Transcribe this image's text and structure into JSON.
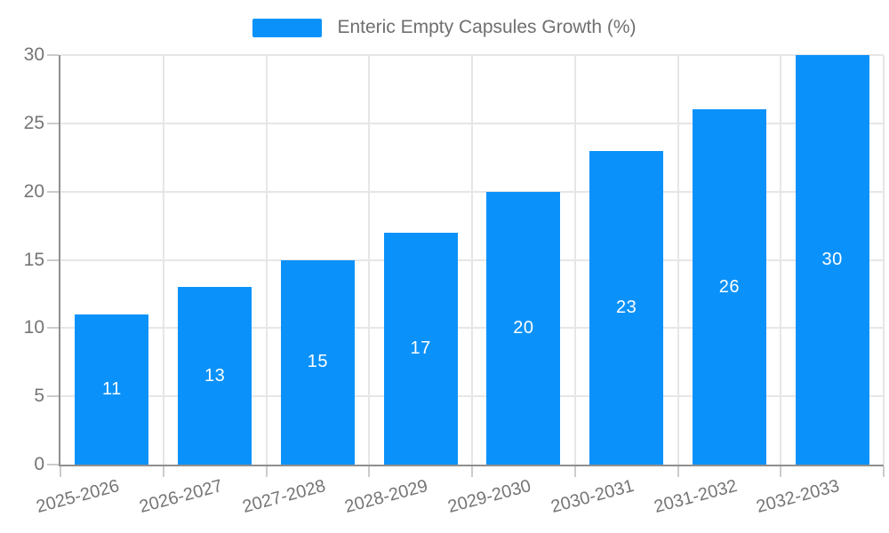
{
  "chart_data": {
    "type": "bar",
    "title": "",
    "categories": [
      "2025-2026",
      "2026-2027",
      "2027-2028",
      "2028-2029",
      "2029-2030",
      "2030-2031",
      "2031-2032",
      "2032-2033"
    ],
    "series": [
      {
        "name": "Enteric Empty Capsules Growth (%)",
        "values": [
          11,
          13,
          15,
          17,
          20,
          23,
          26,
          30
        ]
      }
    ],
    "legend": [
      "Enteric Empty Capsules Growth (%)"
    ],
    "legend_position": "top-center",
    "xlabel": "",
    "ylabel": "",
    "ylim": [
      0,
      30
    ],
    "yticks": [
      0,
      5,
      10,
      15,
      20,
      25,
      30
    ],
    "grid": true,
    "value_labels": "inside-center",
    "x_tick_label_rotation_deg": -15
  },
  "style": {
    "bar_color": "#0b92fa",
    "value_label_color": "#ffffff",
    "axis_text_color": "#757575",
    "legend_text_color": "#6f6f6f",
    "grid_color": "#e6e6e6",
    "axis_line_color": "#8f8f8f",
    "tick_color": "#cccccc",
    "background": "#ffffff"
  }
}
